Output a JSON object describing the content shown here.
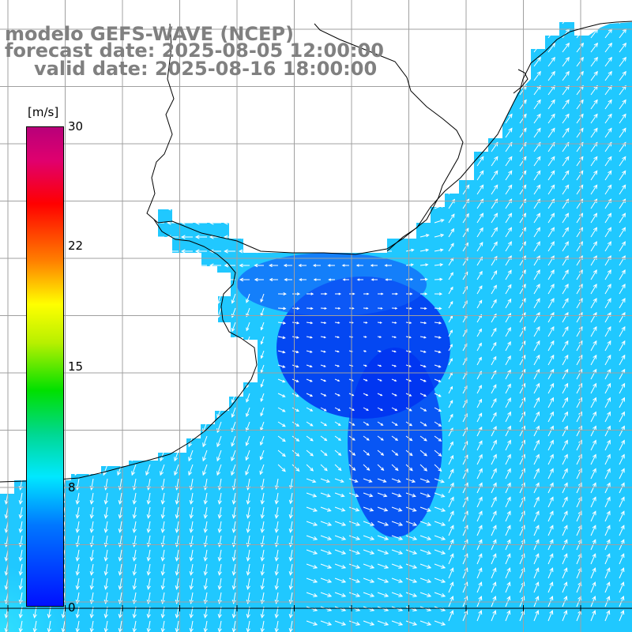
{
  "title": {
    "line1": "modelo GEFS-WAVE (NCEP)",
    "line2": "forecast date: 2025-08-05 12:00:00",
    "line3": "valid date: 2025-08-16 18:00:00",
    "color": "#808080"
  },
  "colorbar": {
    "unit": "[m/s]",
    "max_label": "30",
    "tick_labels": [
      "22",
      "15",
      "8"
    ],
    "min_label": "0",
    "range": [
      0,
      30
    ],
    "colors": [
      "#0010ff",
      "#0078ff",
      "#00e8ff",
      "#00e000",
      "#ffff00",
      "#ff8000",
      "#ff0000",
      "#b8007a"
    ]
  },
  "map": {
    "field": "wind speed and direction",
    "land_color": "#ffffff",
    "coast_color": "#000000",
    "grid_color": "#a0a0a0",
    "arrow_color": "#ffffff",
    "low_speed_color": "#0030f0",
    "high_speed_color": "#20c8ff"
  }
}
